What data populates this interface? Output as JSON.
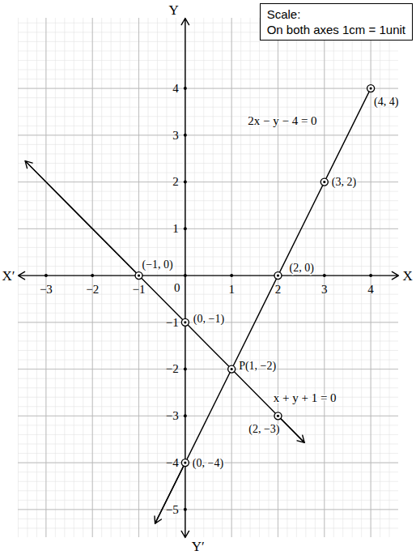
{
  "chart_data": {
    "type": "line",
    "scale_note": [
      "Scale:",
      "On both axes 1cm = 1unit"
    ],
    "xlabel": "X",
    "xlabel_negative": "X′",
    "ylabel": "Y",
    "ylabel_negative": "Y′",
    "xlim": [
      -3.6,
      4.6
    ],
    "ylim": [
      -5.6,
      5.5
    ],
    "xticks": [
      -3,
      -2,
      -1,
      0,
      1,
      2,
      3,
      4
    ],
    "yticks": [
      -5,
      -4,
      -3,
      -2,
      -1,
      1,
      2,
      3,
      4
    ],
    "grid": true,
    "series": [
      {
        "color": "#000000",
        "x": [
          -0.65,
          0,
          2,
          3,
          4
        ],
        "values": [
          -5.3,
          -4,
          0,
          2,
          4
        ]
      },
      {
        "color": "#000000",
        "x": [
          -3.45,
          -1,
          0,
          1,
          2,
          2.57
        ],
        "values": [
          2.45,
          0,
          -1,
          -2,
          -3,
          -3.57
        ]
      }
    ],
    "points": [
      {
        "x": -1,
        "y": 0,
        "label": "(−1, 0)"
      },
      {
        "x": 0,
        "y": -1,
        "label": "(0, −1)"
      },
      {
        "x": 1,
        "y": -2,
        "label": "P(1, −2)"
      },
      {
        "x": 2,
        "y": -3,
        "label": "(2, −3)"
      },
      {
        "x": 0,
        "y": -4,
        "label": "(0, −4)"
      },
      {
        "x": 2,
        "y": 0,
        "label": "(2, 0)"
      },
      {
        "x": 3,
        "y": 2,
        "label": "(3, 2)"
      },
      {
        "x": 4,
        "y": 4,
        "label": "(4, 4)"
      }
    ],
    "annotations": [
      {
        "text": "2x − y − 4 = 0",
        "x": 1.35,
        "y": 3.3
      },
      {
        "text": "x + y + 1 = 0",
        "x": 1.9,
        "y": -2.62
      }
    ]
  }
}
